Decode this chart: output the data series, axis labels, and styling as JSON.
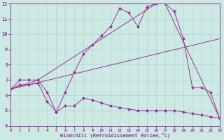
{
  "xlabel": "Windchill (Refroidissement éolien,°C)",
  "xlim": [
    0,
    23
  ],
  "ylim": [
    4,
    12
  ],
  "yticks": [
    4,
    5,
    6,
    7,
    8,
    9,
    10,
    11,
    12
  ],
  "xticks": [
    0,
    1,
    2,
    3,
    4,
    5,
    6,
    7,
    8,
    9,
    10,
    11,
    12,
    13,
    14,
    15,
    16,
    17,
    18,
    19,
    20,
    21,
    22,
    23
  ],
  "bg_color": "#cce9e4",
  "line_color": "#993399",
  "grid_color": "#aacccc",
  "lines": [
    {
      "x": [
        0,
        1,
        2,
        3,
        4,
        5,
        6,
        7,
        8,
        9,
        10,
        11,
        12,
        13,
        14,
        15,
        16,
        17,
        18,
        19,
        20,
        21,
        22,
        23
      ],
      "y": [
        6.4,
        7.0,
        7.0,
        7.0,
        6.2,
        4.9,
        6.2,
        7.5,
        8.7,
        9.3,
        9.9,
        10.5,
        11.7,
        11.4,
        10.5,
        11.8,
        12.0,
        12.0,
        11.5,
        9.7,
        6.5,
        6.5,
        6.2,
        4.5
      ],
      "marker": true,
      "markersize": 2.5
    },
    {
      "x": [
        0,
        23
      ],
      "y": [
        6.4,
        9.7
      ],
      "marker": false,
      "markersize": 0
    },
    {
      "x": [
        0,
        3,
        16,
        17,
        23
      ],
      "y": [
        6.4,
        7.0,
        12.0,
        12.0,
        4.5
      ],
      "marker": false,
      "markersize": 0
    },
    {
      "x": [
        0,
        1,
        2,
        3,
        4,
        5,
        6,
        7,
        8,
        9,
        10,
        11,
        12,
        13,
        14,
        15,
        16,
        17,
        18,
        19,
        20,
        21,
        22,
        23
      ],
      "y": [
        6.4,
        6.7,
        6.7,
        6.8,
        5.6,
        4.9,
        5.3,
        5.3,
        5.8,
        5.7,
        5.5,
        5.3,
        5.2,
        5.1,
        5.0,
        5.0,
        5.0,
        5.0,
        5.0,
        4.9,
        4.8,
        4.7,
        4.6,
        4.5
      ],
      "marker": true,
      "markersize": 2.5
    }
  ]
}
